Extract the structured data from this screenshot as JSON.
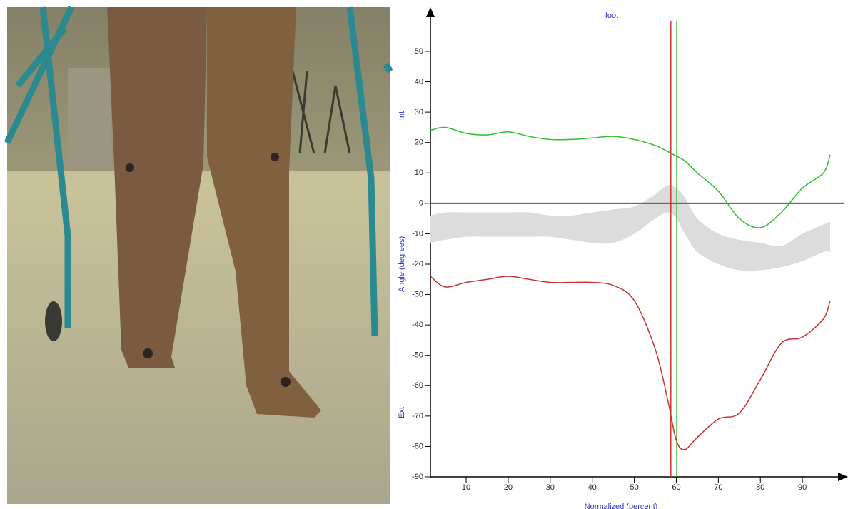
{
  "chart_data": {
    "type": "line",
    "title": "foot",
    "xlabel": "Normalized (percent)",
    "ylabel": "Angle (degrees)",
    "annotations": [
      "Int",
      "Ext"
    ],
    "x": [
      1.5,
      5,
      10,
      15,
      20,
      25,
      30,
      35,
      40,
      45,
      50,
      55,
      58,
      60,
      62,
      65,
      70,
      75,
      80,
      85,
      90,
      95,
      96.6
    ],
    "series": [
      {
        "color": "#2fbf2f",
        "values": [
          24,
          25,
          23,
          22.5,
          23.5,
          22,
          21,
          21,
          21.5,
          22,
          21,
          19,
          17,
          15.5,
          14,
          10,
          4,
          -5,
          -8,
          -3,
          5,
          10,
          16
        ]
      },
      {
        "color": "#c83232",
        "values": [
          -24,
          -27.5,
          -26,
          -25,
          -24,
          -25,
          -26,
          -26,
          -26,
          -27,
          -32,
          -48,
          -65,
          -78,
          -81,
          -77,
          -71,
          -69,
          -58,
          -46,
          -44,
          -38,
          -32
        ]
      }
    ],
    "band": {
      "color": "#dcdcdc",
      "upper": [
        -4,
        -3,
        -3,
        -3,
        -3,
        -3,
        -4,
        -4,
        -3,
        -2,
        -1,
        3,
        6,
        5,
        2,
        -5,
        -10,
        -12,
        -13,
        -14,
        -10,
        -7,
        -6
      ],
      "lower": [
        -13,
        -12,
        -11,
        -11,
        -11,
        -11,
        -11,
        -12,
        -13,
        -13,
        -10,
        -5,
        -3,
        -5,
        -10,
        -16,
        -20,
        -22,
        -22,
        -21,
        -19,
        -16,
        -16
      ]
    },
    "vlines": [
      {
        "x": 58.7,
        "color": "#d03030"
      },
      {
        "x": 60.1,
        "color": "#2fbf2f"
      }
    ],
    "hline": 0,
    "xlim": [
      1.5,
      100
    ],
    "ylim": [
      -90,
      60
    ],
    "xticks": [
      10,
      20,
      30,
      40,
      50,
      60,
      70,
      80,
      90
    ],
    "yticks": [
      -90,
      -80,
      -70,
      -60,
      -50,
      -40,
      -30,
      -20,
      -10,
      0,
      10,
      20,
      30,
      40,
      50
    ]
  }
}
